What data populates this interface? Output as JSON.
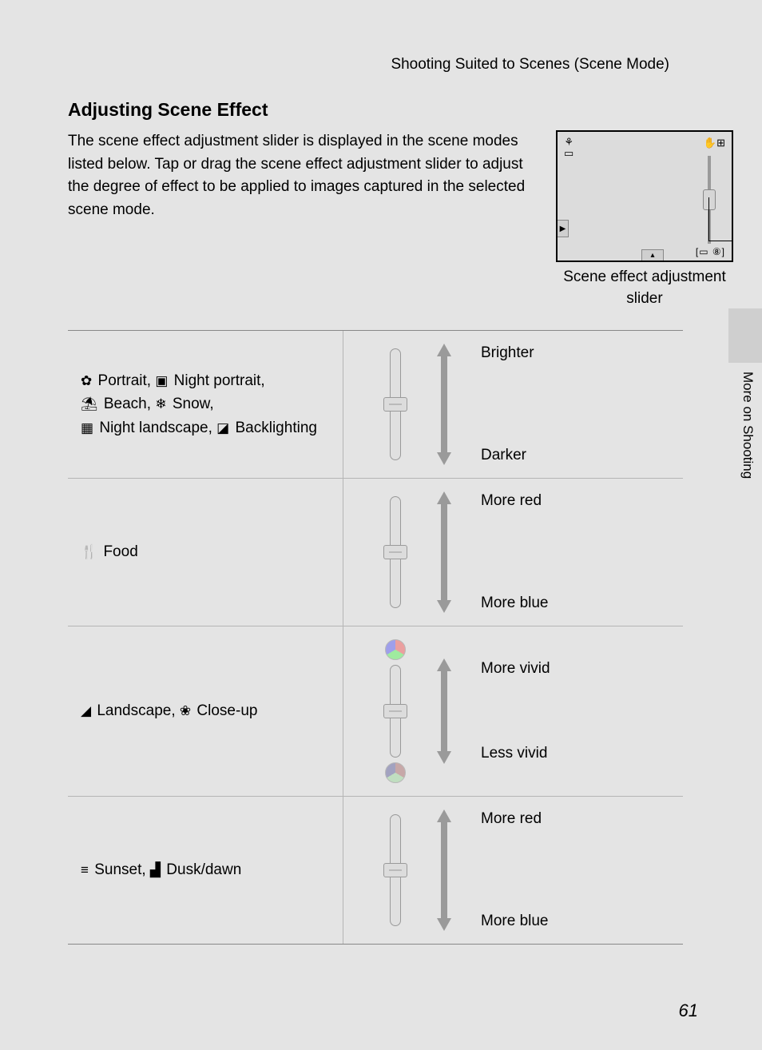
{
  "header": "Shooting Suited to Scenes (Scene Mode)",
  "title": "Adjusting Scene Effect",
  "intro": "The scene effect adjustment slider is displayed in the scene modes listed below. Tap or drag the scene effect adjustment slider to adjust the degree of effect to be applied to images captured in the selected scene mode.",
  "camera_caption": "Scene effect adjustment slider",
  "side_label": "More on Shooting",
  "lcd": {
    "top_left1": "⚘",
    "top_left2": "▭",
    "top_right": "✋⊞",
    "left_btn": "▶",
    "bottom_btn": "▴",
    "bottom_right": "[▭  ⑧]"
  },
  "rows": [
    {
      "modes_html": "<span class='mode-icon'>✿</span> Portrait, <span class='mode-icon'>▣</span> Night portrait,<br><span class='mode-icon'>⛱</span> Beach, <span class='mode-icon'>❄</span> Snow,<br><span class='mode-icon'>▦</span> Night landscape, <span class='mode-icon'>◪</span> Backlighting",
      "top_label": "Brighter",
      "bottom_label": "Darker",
      "slider_style": "simple",
      "height_class": "h140",
      "arrow_class": "h120",
      "labels_class": "h150"
    },
    {
      "modes_html": "<span class='mode-icon'>🍴</span> Food",
      "top_label": "More red",
      "bottom_label": "More blue",
      "slider_style": "simple",
      "height_class": "h140",
      "arrow_class": "h120",
      "labels_class": "h150"
    },
    {
      "modes_html": "<span class='mode-icon'>◢</span> Landscape, <span class='mode-icon'>❀</span> Close-up",
      "top_label": "More vivid",
      "bottom_label": "Less vivid",
      "slider_style": "color",
      "height_class": "h116",
      "arrow_class": "h100",
      "labels_class": "h128"
    },
    {
      "modes_html": "<span class='mode-icon'>≡</span> Sunset, <span class='mode-icon'>▟</span> Dusk/dawn",
      "top_label": "More red",
      "bottom_label": "More blue",
      "slider_style": "simple",
      "height_class": "h140",
      "arrow_class": "h120",
      "labels_class": "h150"
    }
  ],
  "page_number": "61",
  "colors": {
    "page_bg": "#e4e4e4",
    "border": "#888888",
    "row_border": "#b5b5b5",
    "arrow": "#9a9a9a",
    "track": "#b0b0b0"
  }
}
